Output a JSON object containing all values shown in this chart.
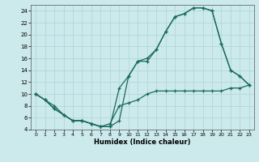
{
  "title": "",
  "xlabel": "Humidex (Indice chaleur)",
  "bg_color": "#cce9ec",
  "grid_color": "#b0d8dc",
  "line_color": "#1a6b5a",
  "xlim": [
    -0.5,
    23.5
  ],
  "ylim": [
    4,
    25
  ],
  "xticks": [
    0,
    1,
    2,
    3,
    4,
    5,
    6,
    7,
    8,
    9,
    10,
    11,
    12,
    13,
    14,
    15,
    16,
    17,
    18,
    19,
    20,
    21,
    22,
    23
  ],
  "yticks": [
    4,
    6,
    8,
    10,
    12,
    14,
    16,
    18,
    20,
    22,
    24
  ],
  "line1_x": [
    0,
    1,
    2,
    3,
    4,
    5,
    6,
    7,
    8,
    9,
    10,
    11,
    12,
    13,
    14,
    15,
    16,
    17,
    18,
    19,
    20,
    21,
    22,
    23
  ],
  "line1_y": [
    10,
    9,
    8,
    6.5,
    5.5,
    5.5,
    5,
    4.5,
    5,
    8,
    8.5,
    9,
    10,
    10.5,
    10.5,
    10.5,
    10.5,
    10.5,
    10.5,
    10.5,
    10.5,
    11,
    11,
    11.5
  ],
  "line2_x": [
    0,
    1,
    2,
    3,
    4,
    5,
    6,
    7,
    8,
    9,
    10,
    11,
    12,
    13,
    14,
    15,
    16,
    17,
    18,
    19,
    20,
    21,
    22,
    23
  ],
  "line2_y": [
    10,
    9,
    7.5,
    6.5,
    5.5,
    5.5,
    5,
    4.5,
    4.5,
    5.5,
    13,
    15.5,
    15.5,
    17.5,
    20.5,
    23,
    23.5,
    24.5,
    24.5,
    24,
    18.5,
    14,
    13,
    11.5
  ],
  "line3_x": [
    0,
    1,
    2,
    3,
    4,
    5,
    6,
    7,
    8,
    9,
    10,
    11,
    12,
    13,
    14,
    15,
    16,
    17,
    18,
    19,
    20,
    21,
    22,
    23
  ],
  "line3_y": [
    10,
    9,
    7.5,
    6.5,
    5.5,
    5.5,
    5,
    4.5,
    4.5,
    11,
    13,
    15.5,
    16,
    17.5,
    20.5,
    23,
    23.5,
    24.5,
    24.5,
    24,
    18.5,
    14,
    13,
    11.5
  ]
}
